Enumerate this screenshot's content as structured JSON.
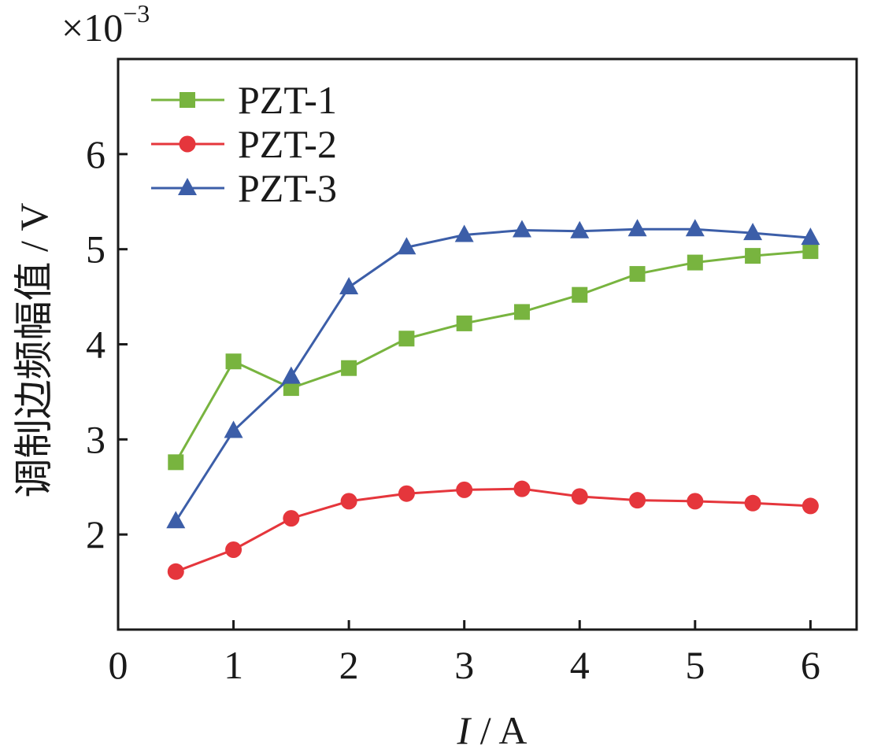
{
  "chart_data": {
    "type": "line",
    "title": "",
    "xlabel_var": "I",
    "xlabel_unit": " / A",
    "ylabel": "调制边频幅值 / V",
    "y_multiplier_base": "×10",
    "y_multiplier_exp": "−3",
    "xlim": [
      0,
      6.4
    ],
    "ylim": [
      1,
      7
    ],
    "xticks": [
      "0",
      "1",
      "2",
      "3",
      "4",
      "5",
      "6"
    ],
    "yticks": [
      "2",
      "3",
      "4",
      "5",
      "6"
    ],
    "legend_position": "top-left",
    "x": [
      0.5,
      1,
      1.5,
      2,
      2.5,
      3,
      3.5,
      4,
      4.5,
      5,
      5.5,
      6
    ],
    "series": [
      {
        "name": "PZT-1",
        "marker": "square",
        "color": "#78b43f",
        "values": [
          2.76,
          3.82,
          3.54,
          3.75,
          4.06,
          4.22,
          4.34,
          4.52,
          4.74,
          4.86,
          4.93,
          4.98
        ]
      },
      {
        "name": "PZT-2",
        "marker": "circle",
        "color": "#e5363c",
        "values": [
          1.61,
          1.84,
          2.17,
          2.35,
          2.43,
          2.47,
          2.48,
          2.4,
          2.36,
          2.35,
          2.33,
          2.3
        ]
      },
      {
        "name": "PZT-3",
        "marker": "triangle",
        "color": "#3c5ea8",
        "values": [
          2.14,
          3.09,
          3.66,
          4.6,
          5.02,
          5.15,
          5.2,
          5.19,
          5.21,
          5.21,
          5.17,
          5.12
        ]
      }
    ]
  }
}
